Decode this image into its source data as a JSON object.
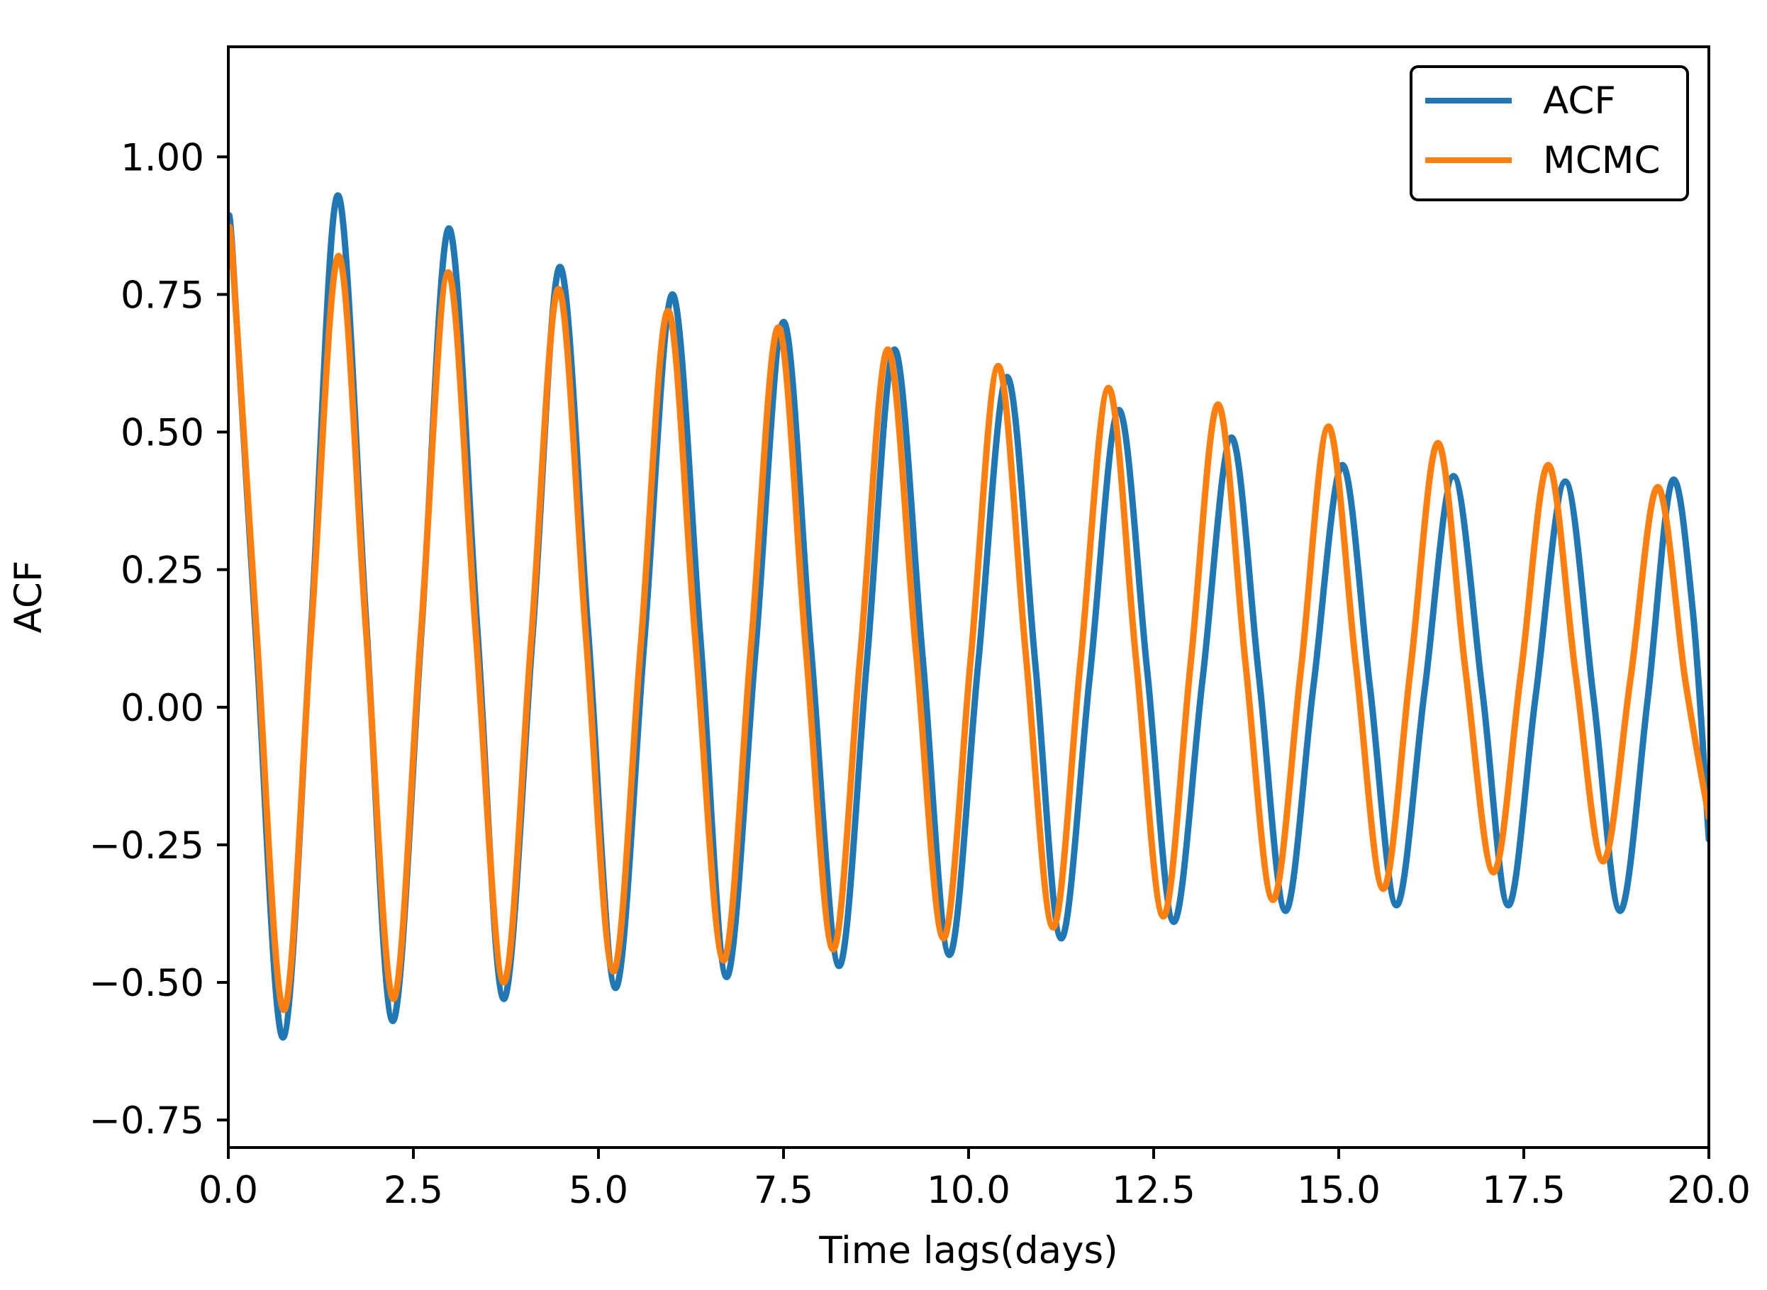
{
  "chart_data": {
    "type": "line",
    "xlabel": "Time lags(days)",
    "ylabel": "ACF",
    "xlim": [
      0,
      20
    ],
    "ylim": [
      -0.8,
      1.2
    ],
    "xticks": [
      0,
      2.5,
      5,
      7.5,
      10,
      12.5,
      15,
      17.5,
      20
    ],
    "xtick_labels": [
      "0.0",
      "2.5",
      "5.0",
      "7.5",
      "10.0",
      "12.5",
      "15.0",
      "17.5",
      "20.0"
    ],
    "yticks": [
      -0.75,
      -0.5,
      -0.25,
      0,
      0.25,
      0.5,
      0.75,
      1.0
    ],
    "ytick_labels": [
      "−0.75",
      "−0.50",
      "−0.25",
      "0.00",
      "0.25",
      "0.50",
      "0.75",
      "1.00"
    ],
    "grid": false,
    "legend_position": "top-right",
    "series": [
      {
        "name": "ACF",
        "color": "#1f77b4",
        "x": [
          0.0,
          0.05,
          0.38,
          0.74,
          1.12,
          1.48,
          1.86,
          2.22,
          2.61,
          2.98,
          3.36,
          3.72,
          4.11,
          4.48,
          4.86,
          5.23,
          5.62,
          6.0,
          6.38,
          6.73,
          7.12,
          7.5,
          7.87,
          8.25,
          8.63,
          9.0,
          9.38,
          9.74,
          10.13,
          10.52,
          10.9,
          11.25,
          11.64,
          12.03,
          12.41,
          12.77,
          13.16,
          13.55,
          13.92,
          14.28,
          14.66,
          15.05,
          15.42,
          15.78,
          16.16,
          16.55,
          16.94,
          17.29,
          17.66,
          18.06,
          18.44,
          18.8,
          19.17,
          19.5,
          19.78,
          20.0
        ],
        "y": [
          0.84,
          0.84,
          0.11,
          -0.6,
          0.15,
          0.93,
          0.16,
          -0.57,
          0.14,
          0.87,
          0.15,
          -0.53,
          0.13,
          0.8,
          0.14,
          -0.51,
          0.12,
          0.75,
          0.12,
          -0.49,
          0.1,
          0.7,
          0.11,
          -0.47,
          0.09,
          0.65,
          0.09,
          -0.45,
          0.08,
          0.6,
          0.08,
          -0.42,
          0.06,
          0.54,
          0.07,
          -0.39,
          0.05,
          0.49,
          0.06,
          -0.37,
          0.04,
          0.44,
          0.04,
          -0.36,
          0.03,
          0.42,
          0.03,
          -0.36,
          0.02,
          0.41,
          0.02,
          -0.37,
          0.01,
          0.41,
          0.18,
          -0.24
        ]
      },
      {
        "name": "MCMC",
        "color": "#ff7f0e",
        "x": [
          0.0,
          0.05,
          0.38,
          0.75,
          1.12,
          1.49,
          1.86,
          2.23,
          2.6,
          2.97,
          3.34,
          3.72,
          4.09,
          4.46,
          4.83,
          5.2,
          5.57,
          5.94,
          6.31,
          6.69,
          7.06,
          7.43,
          7.8,
          8.17,
          8.54,
          8.91,
          9.29,
          9.66,
          10.03,
          10.4,
          10.77,
          11.14,
          11.51,
          11.89,
          12.26,
          12.63,
          13.0,
          13.37,
          13.74,
          14.11,
          14.49,
          14.86,
          15.23,
          15.6,
          15.97,
          16.34,
          16.71,
          17.09,
          17.46,
          17.83,
          18.2,
          18.57,
          18.94,
          19.31,
          19.68,
          20.0
        ],
        "y": [
          0.8,
          0.83,
          0.14,
          -0.55,
          0.14,
          0.82,
          0.14,
          -0.53,
          0.13,
          0.79,
          0.14,
          -0.5,
          0.12,
          0.76,
          0.13,
          -0.48,
          0.11,
          0.72,
          0.12,
          -0.46,
          0.11,
          0.69,
          0.11,
          -0.44,
          0.1,
          0.65,
          0.1,
          -0.42,
          0.09,
          0.62,
          0.1,
          -0.4,
          0.08,
          0.58,
          0.09,
          -0.38,
          0.08,
          0.55,
          0.08,
          -0.35,
          0.07,
          0.51,
          0.08,
          -0.33,
          0.07,
          0.48,
          0.07,
          -0.3,
          0.06,
          0.44,
          0.06,
          -0.28,
          0.05,
          0.4,
          0.05,
          -0.2
        ]
      }
    ]
  }
}
